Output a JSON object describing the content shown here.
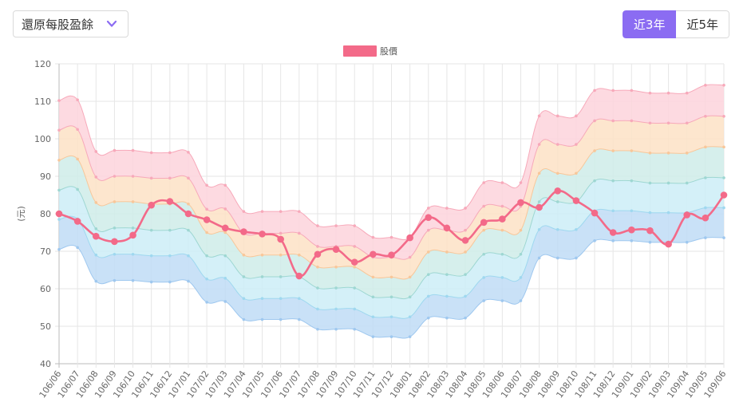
{
  "selector": {
    "label": "還原每股盈餘",
    "icon": "chevron-down-icon"
  },
  "range_toggle": {
    "options": [
      "近3年",
      "近5年"
    ],
    "selected": "近3年"
  },
  "colors": {
    "accent": "#8b6cf2",
    "price_line": "#f36a89",
    "band_fills": [
      "#bfdcf6",
      "#ccedf7",
      "#cfece9",
      "#fde2c6",
      "#fdd3dc"
    ],
    "band_lines": [
      "#9fc8ef",
      "#9fd8ef",
      "#9ed7d2",
      "#f8c79a",
      "#f7a9ba"
    ]
  },
  "chart_data": {
    "type": "area",
    "legend": [
      "股價"
    ],
    "ylabel": "(元)",
    "ylim": [
      40,
      120
    ],
    "yticks": [
      40,
      50,
      60,
      70,
      80,
      90,
      100,
      110,
      120
    ],
    "categories": [
      "106/06",
      "106/07",
      "106/08",
      "106/09",
      "106/10",
      "106/11",
      "106/12",
      "107/01",
      "107/02",
      "107/03",
      "107/04",
      "107/05",
      "107/06",
      "107/07",
      "107/08",
      "107/09",
      "107/10",
      "107/11",
      "107/12",
      "108/01",
      "108/02",
      "108/03",
      "108/04",
      "108/05",
      "108/06",
      "108/07",
      "108/08",
      "108/09",
      "108/10",
      "108/11",
      "108/12",
      "109/01",
      "109/02",
      "109/03",
      "109/04",
      "109/05",
      "109/06"
    ],
    "bands": [
      {
        "name": "band1",
        "values": [
          70.5,
          71.0,
          62.0,
          62.2,
          62.2,
          61.8,
          61.8,
          62.0,
          56.4,
          56.6,
          51.8,
          51.8,
          51.8,
          51.8,
          49.2,
          49.2,
          49.2,
          47.2,
          47.2,
          47.2,
          52.2,
          52.2,
          52.2,
          56.8,
          56.8,
          56.8,
          68.2,
          68.2,
          68.2,
          72.8,
          72.8,
          72.8,
          72.4,
          72.4,
          72.4,
          73.6,
          73.6
        ]
      },
      {
        "name": "band2",
        "values": [
          78.5,
          78.6,
          69.0,
          69.2,
          69.2,
          68.8,
          68.8,
          68.8,
          62.6,
          62.8,
          57.4,
          57.4,
          57.4,
          57.4,
          54.6,
          54.6,
          54.6,
          52.5,
          52.5,
          52.5,
          58.0,
          58.0,
          58.0,
          63.0,
          63.0,
          63.0,
          75.8,
          75.8,
          75.8,
          80.8,
          80.8,
          80.8,
          80.3,
          80.3,
          80.3,
          81.6,
          81.6
        ]
      },
      {
        "name": "band3",
        "values": [
          86.3,
          86.5,
          76.0,
          76.2,
          76.2,
          75.6,
          75.6,
          75.6,
          68.8,
          68.8,
          63.2,
          63.2,
          63.2,
          63.2,
          60.2,
          60.2,
          60.2,
          57.8,
          57.8,
          57.8,
          63.8,
          63.8,
          63.8,
          69.2,
          69.2,
          69.2,
          83.2,
          83.2,
          83.2,
          88.8,
          88.8,
          88.8,
          88.2,
          88.2,
          88.2,
          89.6,
          89.6
        ]
      },
      {
        "name": "band4",
        "values": [
          94.3,
          94.6,
          83.0,
          83.2,
          83.2,
          82.6,
          82.6,
          82.6,
          75.0,
          75.0,
          69.0,
          69.0,
          69.0,
          69.0,
          65.8,
          65.8,
          65.8,
          63.1,
          63.1,
          63.1,
          69.8,
          69.8,
          69.8,
          75.6,
          75.6,
          75.6,
          90.8,
          90.8,
          90.8,
          96.8,
          96.8,
          96.8,
          96.2,
          96.2,
          96.2,
          97.8,
          97.8
        ]
      },
      {
        "name": "band5",
        "values": [
          102.3,
          102.5,
          89.8,
          90.0,
          90.0,
          89.5,
          89.5,
          89.5,
          81.2,
          81.3,
          74.8,
          74.8,
          74.8,
          74.8,
          71.3,
          71.3,
          71.3,
          68.4,
          68.4,
          68.4,
          75.6,
          75.6,
          75.6,
          82.0,
          82.0,
          82.0,
          98.5,
          98.5,
          98.5,
          104.8,
          104.8,
          104.8,
          104.2,
          104.2,
          104.2,
          106.0,
          106.0
        ]
      },
      {
        "name": "band6",
        "values": [
          110.2,
          110.4,
          96.6,
          96.9,
          96.9,
          96.3,
          96.3,
          96.4,
          87.6,
          87.6,
          80.6,
          80.6,
          80.6,
          80.6,
          76.8,
          76.8,
          76.8,
          73.7,
          73.7,
          73.7,
          81.5,
          81.5,
          81.5,
          88.3,
          88.3,
          88.3,
          106.1,
          106.1,
          106.1,
          112.9,
          112.9,
          112.9,
          112.2,
          112.2,
          112.2,
          114.3,
          114.3
        ]
      }
    ],
    "series": [
      {
        "name": "股價",
        "values": [
          80.0,
          78.0,
          74.0,
          72.6,
          74.3,
          82.3,
          83.3,
          80.0,
          78.4,
          76.2,
          75.2,
          74.6,
          73.2,
          63.4,
          69.2,
          70.5,
          67.1,
          69.2,
          69.0,
          73.6,
          79.0,
          76.2,
          72.9,
          77.7,
          78.6,
          83.0,
          81.7,
          86.1,
          83.5,
          80.2,
          75.0,
          75.7,
          75.5,
          71.9,
          79.7,
          78.9,
          85.0
        ]
      }
    ]
  }
}
